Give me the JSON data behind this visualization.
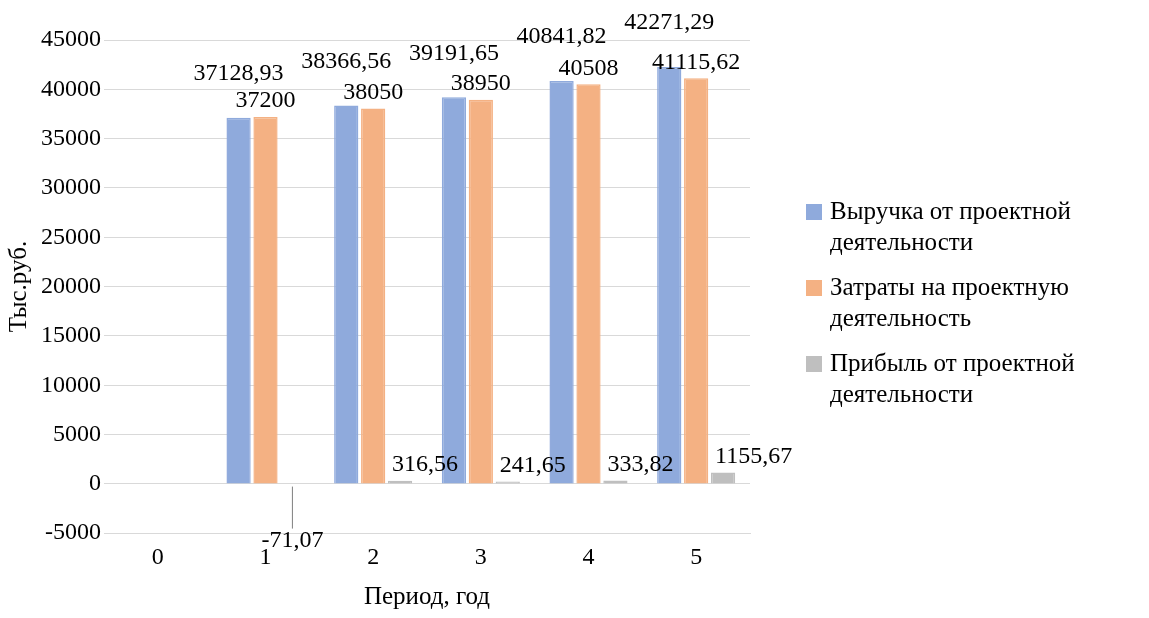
{
  "chart_data": {
    "type": "bar",
    "xlabel": "Период, год",
    "ylabel": "Тыс.руб.",
    "categories": [
      "0",
      "1",
      "2",
      "3",
      "4",
      "5"
    ],
    "series": [
      {
        "name": "Выручка от проектной деятельности",
        "color": "#8faadc",
        "values": [
          null,
          37128.93,
          38366.56,
          39191.65,
          40841.82,
          42271.29
        ],
        "value_labels": [
          null,
          "37128,93",
          "38366,56",
          "39191,65",
          "40841,82",
          "42271,29"
        ]
      },
      {
        "name": "Затраты на проектную деятельность",
        "color": "#f4b183",
        "values": [
          null,
          37200,
          38050,
          38950,
          40508,
          41115.62
        ],
        "value_labels": [
          null,
          "37200",
          "38050",
          "38950",
          "40508",
          "41115,62"
        ]
      },
      {
        "name": "Прибыль от проектной деятельности",
        "color": "#bfbfbf",
        "values": [
          null,
          -71.07,
          316.56,
          241.65,
          333.82,
          1155.67
        ],
        "value_labels": [
          null,
          "-71,07",
          "316,56",
          "241,65",
          "333,82",
          "1155,67"
        ]
      }
    ],
    "ylim": [
      -5000,
      45000
    ],
    "yticks": [
      -5000,
      0,
      5000,
      10000,
      15000,
      20000,
      25000,
      30000,
      35000,
      40000,
      45000
    ],
    "grid": "y",
    "legend": "right"
  }
}
